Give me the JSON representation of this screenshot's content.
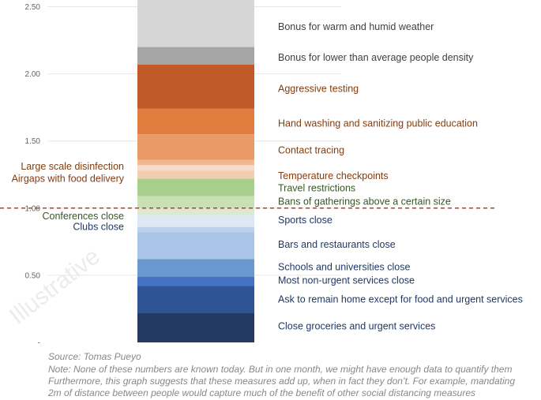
{
  "chart_data": {
    "type": "stacked-bar",
    "ylim": [
      0,
      2.55
    ],
    "y_ticks": [
      {
        "value": 2.5,
        "label": "2.50"
      },
      {
        "value": 2.0,
        "label": "2.00"
      },
      {
        "value": 1.5,
        "label": "1.50"
      },
      {
        "value": 1.0,
        "label": "1.00"
      },
      {
        "value": 0.5,
        "label": "0.50"
      },
      {
        "value": 0.0,
        "label": "-"
      }
    ],
    "threshold": {
      "value": 1.0,
      "color": "#c0392b"
    },
    "segments": [
      {
        "label": "Close groceries and urgent services",
        "from": 0.0,
        "to": 0.22,
        "color": "#253a63",
        "text_color": "#1f3864",
        "label_y": 0.12,
        "side": "right"
      },
      {
        "label": "Ask to remain home except for food and urgent services",
        "from": 0.22,
        "to": 0.42,
        "color": "#2f5496",
        "text_color": "#1f3864",
        "label_y": 0.32,
        "side": "right"
      },
      {
        "label": "Most non-urgent services close",
        "from": 0.42,
        "to": 0.49,
        "color": "#4472c4",
        "text_color": "#1f3864",
        "label_y": 0.46,
        "side": "right"
      },
      {
        "label": "Schools and universities close",
        "from": 0.49,
        "to": 0.62,
        "color": "#6a98d0",
        "text_color": "#1f3864",
        "label_y": 0.56,
        "side": "right"
      },
      {
        "label": "Bars and restaurants close",
        "from": 0.62,
        "to": 0.82,
        "color": "#a8c4e6",
        "text_color": "#1f3864",
        "label_y": 0.73,
        "side": "right"
      },
      {
        "label": "Clubs close",
        "from": 0.82,
        "to": 0.86,
        "color": "#bcd2ec",
        "text_color": "#1f3864",
        "label_y": 0.86,
        "side": "left"
      },
      {
        "label": "Sports close",
        "from": 0.86,
        "to": 0.95,
        "color": "#dde8f5",
        "text_color": "#1f3864",
        "label_y": 0.91,
        "side": "right"
      },
      {
        "label": "Conferences close",
        "from": 0.95,
        "to": 1.0,
        "color": "#dce9d0",
        "text_color": "#375623",
        "label_y": 0.94,
        "side": "left"
      },
      {
        "label": "Bans of gatherings above a certain size",
        "from": 1.0,
        "to": 1.09,
        "color": "#c8e0b4",
        "text_color": "#375623",
        "label_y": 1.05,
        "side": "right"
      },
      {
        "label": "Travel restrictions",
        "from": 1.09,
        "to": 1.22,
        "color": "#a9cf8c",
        "text_color": "#375623",
        "label_y": 1.15,
        "side": "right"
      },
      {
        "label": "Temperature checkpoints",
        "from": 1.22,
        "to": 1.28,
        "color": "#f4ccb0",
        "text_color": "#843c0c",
        "label_y": 1.24,
        "side": "right"
      },
      {
        "label": "Airgaps with food delivery",
        "from": 1.28,
        "to": 1.32,
        "color": "#f7dccb",
        "text_color": "#843c0c",
        "label_y": 1.22,
        "side": "left"
      },
      {
        "label": "Large scale disinfection",
        "from": 1.32,
        "to": 1.36,
        "color": "#f0b892",
        "text_color": "#843c0c",
        "label_y": 1.31,
        "side": "left"
      },
      {
        "label": "Contact tracing",
        "from": 1.36,
        "to": 1.55,
        "color": "#e99a67",
        "text_color": "#843c0c",
        "label_y": 1.43,
        "side": "right"
      },
      {
        "label": "Hand washing and sanitizing public education",
        "from": 1.55,
        "to": 1.74,
        "color": "#e07c3e",
        "text_color": "#843c0c",
        "label_y": 1.63,
        "side": "right"
      },
      {
        "label": "Aggressive testing",
        "from": 1.74,
        "to": 2.07,
        "color": "#c05a28",
        "text_color": "#843c0c",
        "label_y": 1.89,
        "side": "right"
      },
      {
        "label": "Bonus for lower than average people density",
        "from": 2.07,
        "to": 2.2,
        "color": "#a5a5a5",
        "text_color": "#404040",
        "label_y": 2.12,
        "side": "right"
      },
      {
        "label": "Bonus for warm and humid weather",
        "from": 2.2,
        "to": 2.55,
        "color": "#d6d6d6",
        "text_color": "#404040",
        "label_y": 2.35,
        "side": "right"
      }
    ],
    "watermark": "Illustrative"
  },
  "footer": {
    "source": "Source: Tomas Pueyo",
    "note1": "Note: None of these numbers are known today. But in one month, we might have enough data to quantify them",
    "note2": "Furthermore, this graph suggests that these measures add up, when in fact they don’t. For example, mandating",
    "note3": "2m of distance between people would capture much of the benefit of other social distancing measures"
  }
}
